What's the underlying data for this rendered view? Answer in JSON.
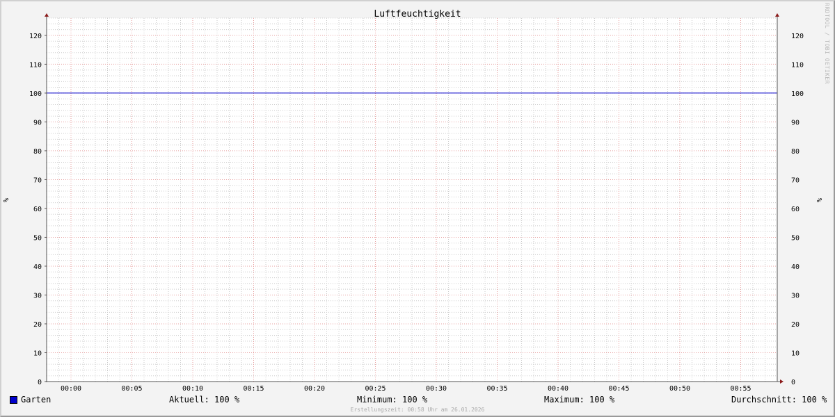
{
  "chart_data": {
    "type": "line",
    "title": "Luftfeuchtigkeit",
    "ylabel": "%",
    "ylabel_right": "%",
    "ylim": [
      0,
      126
    ],
    "yticks": [
      0,
      10,
      20,
      30,
      40,
      50,
      60,
      70,
      80,
      90,
      100,
      110,
      120
    ],
    "xlim": [
      "23:58",
      "00:58"
    ],
    "xticks": [
      "00:00",
      "00:05",
      "00:10",
      "00:15",
      "00:20",
      "00:25",
      "00:30",
      "00:35",
      "00:40",
      "00:45",
      "00:50",
      "00:55"
    ],
    "grid": true,
    "series": [
      {
        "name": "Garten",
        "color": "#0000cc",
        "x": [
          "23:58",
          "00:58"
        ],
        "y": [
          100,
          100
        ]
      }
    ],
    "legend": {
      "series_label": "Garten",
      "aktuell": "Aktuell: 100 %",
      "minimum": "Minimum: 100 %",
      "maximum": "Maximum: 100 %",
      "durchschnitt": "Durchschnitt: 100 %"
    },
    "footer": "Erstellungszeit: 00:58 Uhr am 26.01.2026",
    "watermark": "RRDTOOL / TOBI OETIKER",
    "colors": {
      "major_grid": "#e8a0a0",
      "minor_grid": "#cccccc",
      "axis": "#555555",
      "arrow": "#8b1a1a",
      "background": "#f3f3f3",
      "canvas": "#ffffff"
    }
  }
}
